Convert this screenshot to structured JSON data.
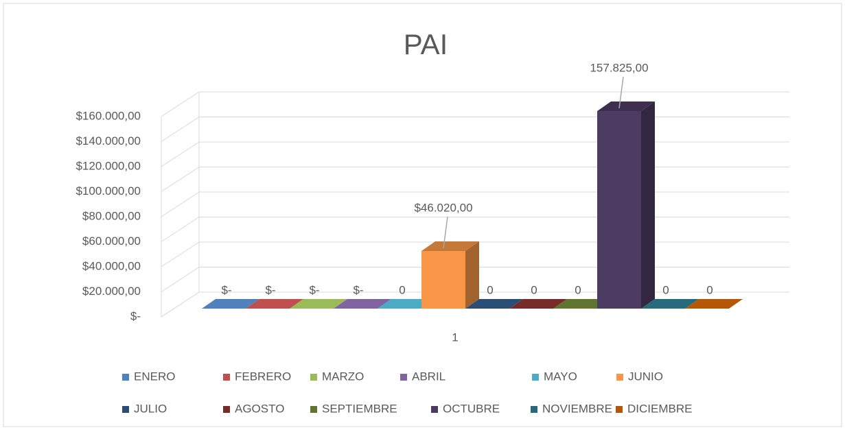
{
  "chart_data": {
    "type": "bar3d",
    "title": "PAI",
    "categories": [
      "1"
    ],
    "series": [
      {
        "name": "ENERO",
        "color": "#4f81bd",
        "values": [
          0
        ],
        "value_labels": [
          "$-"
        ]
      },
      {
        "name": "FEBRERO",
        "color": "#c0504d",
        "values": [
          0
        ],
        "value_labels": [
          "$-"
        ]
      },
      {
        "name": "MARZO",
        "color": "#9bbb59",
        "values": [
          0
        ],
        "value_labels": [
          "$-"
        ]
      },
      {
        "name": "ABRIL",
        "color": "#8064a2",
        "values": [
          0
        ],
        "value_labels": [
          "$-"
        ]
      },
      {
        "name": "MAYO",
        "color": "#4bacc6",
        "values": [
          0
        ]
      },
      {
        "name": "JUNIO",
        "color": "#f79646",
        "values": [
          46020
        ],
        "value_labels": [
          "$46.020,00"
        ]
      },
      {
        "name": "JULIO",
        "color": "#2c4d75",
        "values": [
          0
        ]
      },
      {
        "name": "AGOSTO",
        "color": "#772c2a",
        "values": [
          0
        ]
      },
      {
        "name": "SEPTIEMBRE",
        "color": "#5f7530",
        "values": [
          0
        ]
      },
      {
        "name": "OCTUBRE",
        "color": "#4d3b62",
        "values": [
          157825
        ],
        "value_labels": [
          "157.825,00"
        ]
      },
      {
        "name": "NOVIEMBRE",
        "color": "#276a7c",
        "values": [
          0
        ]
      },
      {
        "name": "DICIEMBRE",
        "color": "#b65708",
        "values": [
          0
        ]
      }
    ],
    "ylim": [
      0,
      160000
    ],
    "yticks": [
      {
        "value": 0,
        "label": "$-"
      },
      {
        "value": 20000,
        "label": "$20.000,00"
      },
      {
        "value": 40000,
        "label": "$40.000,00"
      },
      {
        "value": 60000,
        "label": "$60.000,00"
      },
      {
        "value": 80000,
        "label": "$80.000,00"
      },
      {
        "value": 100000,
        "label": "$100.000,00"
      },
      {
        "value": 120000,
        "label": "$120.000,00"
      },
      {
        "value": 140000,
        "label": "$140.000,00"
      },
      {
        "value": 160000,
        "label": "$160.000,00"
      }
    ],
    "grid": true,
    "legend": "bottom"
  }
}
